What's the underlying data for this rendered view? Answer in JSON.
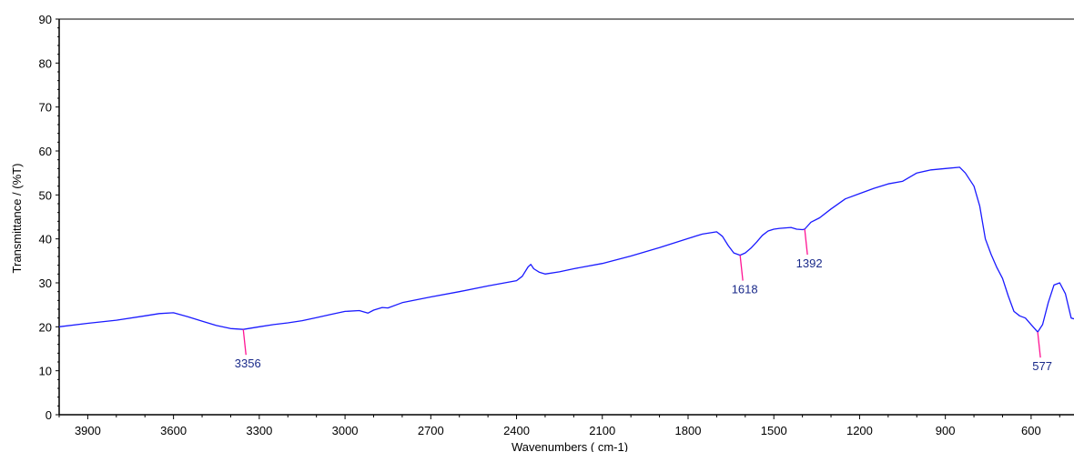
{
  "chart_data": {
    "type": "line",
    "xlabel": "Wavenumbers ( cm-1)",
    "ylabel": "Transmittance / (%T)",
    "xlim": [
      4000,
      450
    ],
    "ylim": [
      0,
      90
    ],
    "x_reversed": true,
    "x_ticks": [
      3900,
      3600,
      3300,
      3000,
      2700,
      2400,
      2100,
      1800,
      1500,
      1200,
      900,
      600
    ],
    "y_ticks": [
      0,
      10,
      20,
      30,
      40,
      50,
      60,
      70,
      80,
      90
    ],
    "grid": false,
    "colors": {
      "line": "#1a1aff",
      "peak_marker": "#ff1493",
      "peak_label": "#1a2a8a",
      "axis": "#000000"
    },
    "series": [
      {
        "x": [
          4000,
          3900,
          3800,
          3700,
          3650,
          3600,
          3550,
          3500,
          3450,
          3400,
          3356,
          3300,
          3250,
          3200,
          3150,
          3100,
          3050,
          3000,
          2950,
          2920,
          2900,
          2870,
          2850,
          2800,
          2700,
          2600,
          2500,
          2400,
          2380,
          2360,
          2350,
          2340,
          2320,
          2300,
          2250,
          2200,
          2100,
          2000,
          1900,
          1800,
          1750,
          1700,
          1680,
          1660,
          1640,
          1618,
          1600,
          1580,
          1560,
          1540,
          1520,
          1500,
          1480,
          1460,
          1440,
          1420,
          1400,
          1392,
          1370,
          1340,
          1300,
          1250,
          1200,
          1150,
          1100,
          1050,
          1000,
          950,
          900,
          850,
          830,
          800,
          780,
          760,
          740,
          720,
          700,
          680,
          660,
          640,
          620,
          600,
          577,
          560,
          540,
          520,
          500,
          480,
          460,
          450
        ],
        "y": [
          20.0,
          20.8,
          21.5,
          22.5,
          23.0,
          23.2,
          22.3,
          21.3,
          20.3,
          19.6,
          19.4,
          20.0,
          20.5,
          20.9,
          21.4,
          22.1,
          22.8,
          23.5,
          23.7,
          23.1,
          23.8,
          24.4,
          24.3,
          25.5,
          26.8,
          28.0,
          29.3,
          30.5,
          31.5,
          33.6,
          34.2,
          33.2,
          32.4,
          32.0,
          32.5,
          33.2,
          34.4,
          36.1,
          38.0,
          40.1,
          41.1,
          41.6,
          40.6,
          38.5,
          36.8,
          36.3,
          36.8,
          37.9,
          39.3,
          40.8,
          41.8,
          42.2,
          42.4,
          42.5,
          42.6,
          42.2,
          42.1,
          42.2,
          43.8,
          44.8,
          46.8,
          49.1,
          50.3,
          51.5,
          52.5,
          53.1,
          55.0,
          55.7,
          56.0,
          56.3,
          55.0,
          52.0,
          47.5,
          40.0,
          36.5,
          33.5,
          31.0,
          27.0,
          23.5,
          22.5,
          22.0,
          20.5,
          18.8,
          20.5,
          25.5,
          29.5,
          30.0,
          27.5,
          22.0,
          21.8
        ]
      }
    ],
    "peaks": [
      {
        "label": "3356",
        "x": 3356,
        "y": 19.4
      },
      {
        "label": "1618",
        "x": 1618,
        "y": 36.3
      },
      {
        "label": "1392",
        "x": 1392,
        "y": 42.2
      },
      {
        "label": "577",
        "x": 577,
        "y": 18.8
      }
    ]
  }
}
